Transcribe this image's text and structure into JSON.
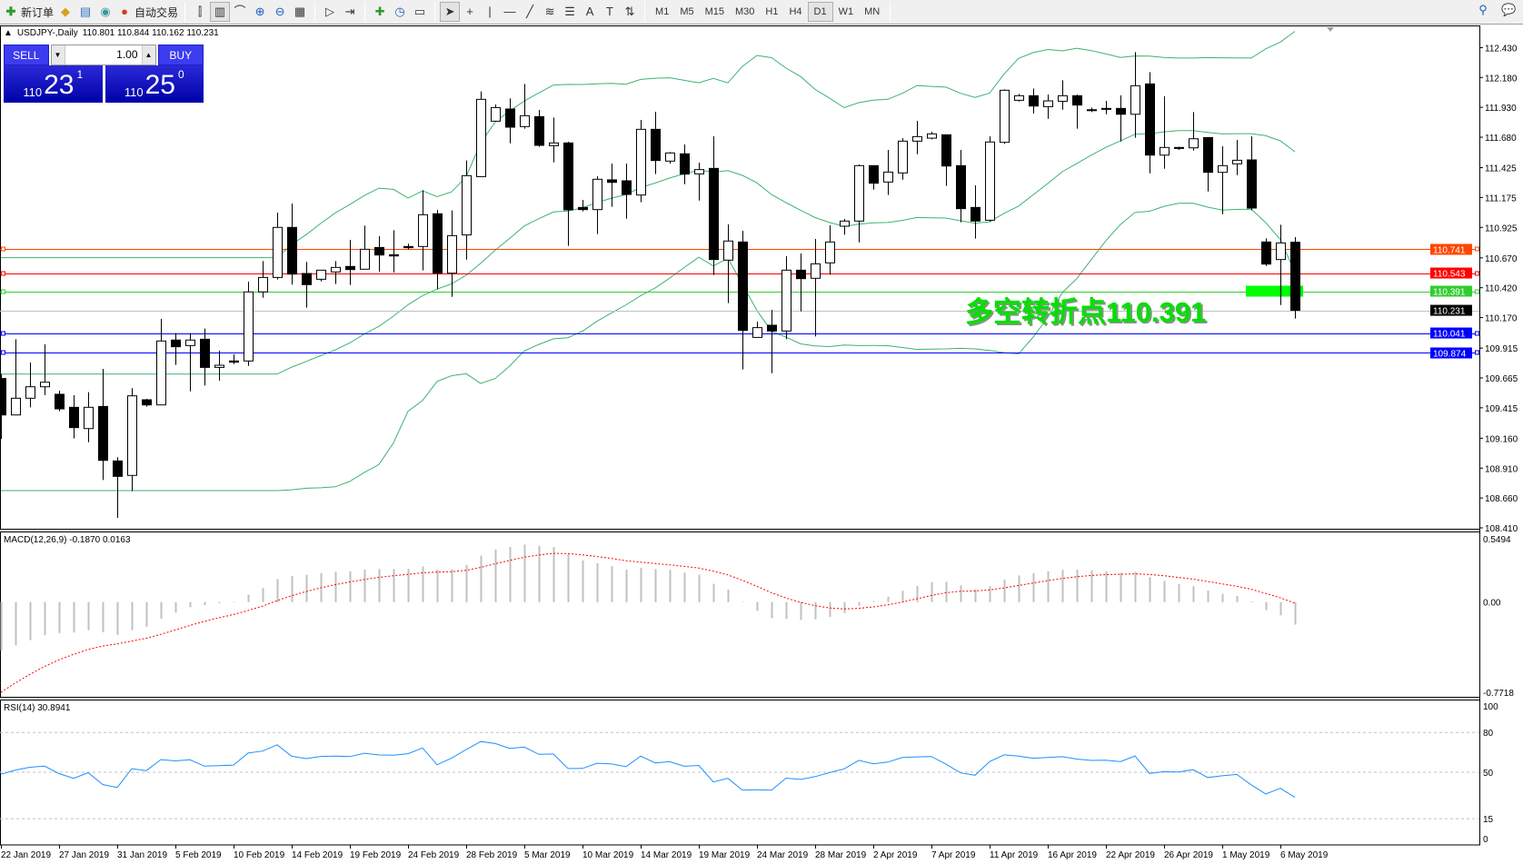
{
  "toolbar": {
    "new_order": "新订单",
    "auto_trading": "自动交易",
    "icons_left": [
      "book-icon",
      "terminal-icon",
      "signal-icon"
    ],
    "icons_chart": [
      "bar-chart-icon",
      "candlestick-icon",
      "line-chart-icon",
      "zoom-in-icon",
      "zoom-out-icon",
      "tile-windows-icon",
      "autoscroll-icon",
      "chart-shift-icon",
      "add-indicator-icon",
      "periods-clock-icon",
      "templates-icon",
      "cursor-icon",
      "crosshair-icon",
      "vertical-line-icon",
      "horizontal-line-icon",
      "trendline-icon",
      "fibo-channel-icon",
      "fibo-retracement-icon",
      "text-icon",
      "text-label-icon",
      "arrows-icon"
    ],
    "timeframes": [
      "M1",
      "M5",
      "M15",
      "M30",
      "H1",
      "H4",
      "D1",
      "W1",
      "MN"
    ],
    "active_timeframe": "D1"
  },
  "chart": {
    "symbol": "USDJPY-,Daily",
    "ohlc": "110.801 110.844 110.162 110.231"
  },
  "trade_panel": {
    "sell": "SELL",
    "buy": "BUY",
    "lot": "1.00",
    "sell_price": {
      "big": "110",
      "main": "23",
      "sup": "1"
    },
    "buy_price": {
      "big": "110",
      "main": "25",
      "sup": "0"
    }
  },
  "annotation": {
    "text": "多空转折点110.391",
    "color": "#00ff00"
  },
  "chart_data": {
    "type": "candlestick",
    "ylim": [
      108.41,
      112.43
    ],
    "price_ticks": [
      "112.430",
      "112.180",
      "111.930",
      "111.680",
      "111.425",
      "111.175",
      "110.925",
      "110.670",
      "110.420",
      "110.170",
      "109.915",
      "109.665",
      "109.415",
      "109.160",
      "108.910",
      "108.660",
      "108.410"
    ],
    "date_labels": [
      "22 Jan 2019",
      "27 Jan 2019",
      "31 Jan 2019",
      "5 Feb 2019",
      "10 Feb 2019",
      "14 Feb 2019",
      "19 Feb 2019",
      "24 Feb 2019",
      "28 Feb 2019",
      "5 Mar 2019",
      "10 Mar 2019",
      "14 Mar 2019",
      "19 Mar 2019",
      "24 Mar 2019",
      "28 Mar 2019",
      "2 Apr 2019",
      "7 Apr 2019",
      "11 Apr 2019",
      "16 Apr 2019",
      "22 Apr 2019",
      "26 Apr 2019",
      "1 May 2019",
      "6 May 2019"
    ],
    "ohlc": [
      [
        109.66,
        109.698,
        109.153,
        109.355
      ],
      [
        109.355,
        109.989,
        109.355,
        109.495
      ],
      [
        109.495,
        109.794,
        109.419,
        109.591
      ],
      [
        109.591,
        109.946,
        109.52,
        109.629
      ],
      [
        109.528,
        109.558,
        109.386,
        109.406
      ],
      [
        109.419,
        109.52,
        109.158,
        109.249
      ],
      [
        109.241,
        109.546,
        109.127,
        109.419
      ],
      [
        109.426,
        109.741,
        108.81,
        108.975
      ],
      [
        108.97,
        109.001,
        108.494,
        108.841
      ],
      [
        108.849,
        109.579,
        108.717,
        109.515
      ],
      [
        109.482,
        109.49,
        109.424,
        109.439
      ],
      [
        109.439,
        110.159,
        109.439,
        109.974
      ],
      [
        109.982,
        110.04,
        109.774,
        109.926
      ],
      [
        109.936,
        110.04,
        109.553,
        109.982
      ],
      [
        109.989,
        110.078,
        109.601,
        109.753
      ],
      [
        109.753,
        109.893,
        109.642,
        109.771
      ],
      [
        109.807,
        109.863,
        109.781,
        109.797
      ],
      [
        109.807,
        110.471,
        109.766,
        110.385
      ],
      [
        110.385,
        110.643,
        110.336,
        110.506
      ],
      [
        110.506,
        111.049,
        110.489,
        110.925
      ],
      [
        110.925,
        111.125,
        110.446,
        110.534
      ],
      [
        110.539,
        110.636,
        110.253,
        110.446
      ],
      [
        110.491,
        110.567,
        110.473,
        110.567
      ],
      [
        110.552,
        110.643,
        110.451,
        110.59
      ],
      [
        110.598,
        110.821,
        110.443,
        110.572
      ],
      [
        110.575,
        110.94,
        110.575,
        110.742
      ],
      [
        110.757,
        110.851,
        110.555,
        110.694
      ],
      [
        110.696,
        110.902,
        110.547,
        110.686
      ],
      [
        110.765,
        110.788,
        110.742,
        110.755
      ],
      [
        110.765,
        111.236,
        110.565,
        111.031
      ],
      [
        111.039,
        111.072,
        110.407,
        110.542
      ],
      [
        110.542,
        111.067,
        110.344,
        110.856
      ],
      [
        110.862,
        111.485,
        110.655,
        111.358
      ],
      [
        111.35,
        112.063,
        111.35,
        111.997
      ],
      [
        111.814,
        111.954,
        111.814,
        111.928
      ],
      [
        111.916,
        112.005,
        111.629,
        111.764
      ],
      [
        111.769,
        112.126,
        111.751,
        111.86
      ],
      [
        111.852,
        111.908,
        111.599,
        111.612
      ],
      [
        111.609,
        111.845,
        111.47,
        111.632
      ],
      [
        111.632,
        111.642,
        110.77,
        111.072
      ],
      [
        111.092,
        111.155,
        111.059,
        111.074
      ],
      [
        111.074,
        111.353,
        110.869,
        111.328
      ],
      [
        111.323,
        111.46,
        111.097,
        111.302
      ],
      [
        111.315,
        111.46,
        110.998,
        111.201
      ],
      [
        111.196,
        111.825,
        111.135,
        111.746
      ],
      [
        111.746,
        111.893,
        111.371,
        111.485
      ],
      [
        111.48,
        111.556,
        111.46,
        111.548
      ],
      [
        111.541,
        111.619,
        111.287,
        111.371
      ],
      [
        111.373,
        111.467,
        111.15,
        111.409
      ],
      [
        111.419,
        111.688,
        110.527,
        110.656
      ],
      [
        110.651,
        110.95,
        110.291,
        110.811
      ],
      [
        110.803,
        110.897,
        109.736,
        110.063
      ],
      [
        110.004,
        110.136,
        110.004,
        110.086
      ],
      [
        110.106,
        110.235,
        109.705,
        110.058
      ],
      [
        110.058,
        110.684,
        109.989,
        110.567
      ],
      [
        110.567,
        110.707,
        110.222,
        110.496
      ],
      [
        110.499,
        110.828,
        110.012,
        110.62
      ],
      [
        110.628,
        110.942,
        110.529,
        110.803
      ],
      [
        110.935,
        110.996,
        110.864,
        110.978
      ],
      [
        110.978,
        111.452,
        110.8,
        111.442
      ],
      [
        111.442,
        111.442,
        111.241,
        111.295
      ],
      [
        111.305,
        111.574,
        111.196,
        111.388
      ],
      [
        111.381,
        111.672,
        111.325,
        111.647
      ],
      [
        111.647,
        111.817,
        111.538,
        111.685
      ],
      [
        111.672,
        111.726,
        111.662,
        111.708
      ],
      [
        111.7,
        111.7,
        111.272,
        111.439
      ],
      [
        111.442,
        111.574,
        110.968,
        111.082
      ],
      [
        111.092,
        111.277,
        110.831,
        110.978
      ],
      [
        110.985,
        111.688,
        110.973,
        111.64
      ],
      [
        111.637,
        112.08,
        111.624,
        112.073
      ],
      [
        111.989,
        112.042,
        111.979,
        112.027
      ],
      [
        112.027,
        112.088,
        111.878,
        111.941
      ],
      [
        111.936,
        112.037,
        111.834,
        111.984
      ],
      [
        111.981,
        112.156,
        111.91,
        112.027
      ],
      [
        112.027,
        112.037,
        111.751,
        111.949
      ],
      [
        111.91,
        111.928,
        111.89,
        111.905
      ],
      [
        111.921,
        111.984,
        111.872,
        111.913
      ],
      [
        111.921,
        112.03,
        111.644,
        111.872
      ],
      [
        111.872,
        112.392,
        111.675,
        112.111
      ],
      [
        112.126,
        112.225,
        111.378,
        111.53
      ],
      [
        111.53,
        112.022,
        111.416,
        111.594
      ],
      [
        111.594,
        111.599,
        111.573,
        111.586
      ],
      [
        111.591,
        111.89,
        111.568,
        111.667
      ],
      [
        111.677,
        111.677,
        111.226,
        111.386
      ],
      [
        111.386,
        111.604,
        111.036,
        111.442
      ],
      [
        111.457,
        111.657,
        111.363,
        111.487
      ],
      [
        111.49,
        111.687,
        111.069,
        111.087
      ],
      [
        110.803,
        110.833,
        110.602,
        110.618
      ],
      [
        110.656,
        110.947,
        110.275,
        110.795
      ],
      [
        110.801,
        110.844,
        110.162,
        110.231
      ]
    ],
    "levels": [
      {
        "value": 110.741,
        "label": "110.741",
        "color": "#ff4500"
      },
      {
        "value": 110.543,
        "label": "110.543",
        "color": "#ff0000"
      },
      {
        "value": 110.391,
        "label": "110.391",
        "color": "#32cd32"
      },
      {
        "value": 110.231,
        "label": "110.231",
        "color": "#c0c0c0",
        "label_bg": "#000000"
      },
      {
        "value": 110.041,
        "label": "110.041",
        "color": "#0000ff"
      },
      {
        "value": 109.874,
        "label": "109.874",
        "color": "#0000ff"
      }
    ],
    "bollinger": {
      "period": 20,
      "deviation": 2,
      "color": "#3cb371"
    },
    "macd": {
      "label": "MACD(12,26,9) -0.1870 0.0163",
      "ticks": [
        "0.5494",
        "0.00",
        "-0.7718"
      ],
      "range": [
        -0.7718,
        0.5494
      ],
      "histogram_color": "#c0c0c0",
      "signal_color": "#ff0000"
    },
    "rsi": {
      "label": "RSI(14) 30.8941",
      "ticks": [
        "100",
        "80",
        "50",
        "15",
        "0"
      ],
      "levels": [
        80,
        50,
        15
      ],
      "color": "#1e90ff"
    }
  }
}
